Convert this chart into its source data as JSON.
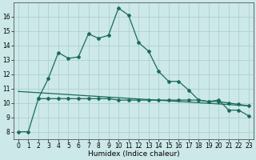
{
  "xlabel": "Humidex (Indice chaleur)",
  "bg_color": "#cce8e8",
  "grid_color": "#aacccc",
  "line_color": "#1a6b5a",
  "line1_x": [
    0,
    1,
    2,
    3,
    4,
    5,
    6,
    7,
    8,
    9,
    10,
    11,
    12,
    13,
    14,
    15,
    16,
    17,
    18,
    19,
    20,
    21,
    22,
    23
  ],
  "line1_y": [
    8.0,
    8.0,
    10.3,
    11.7,
    13.5,
    13.1,
    13.2,
    14.8,
    14.5,
    14.7,
    16.6,
    16.1,
    14.2,
    13.6,
    12.2,
    11.5,
    11.5,
    10.9,
    10.2,
    10.1,
    10.2,
    9.5,
    9.5,
    9.1
  ],
  "line2_x": [
    2,
    3,
    4,
    5,
    6,
    7,
    8,
    9,
    10,
    11,
    12,
    13,
    14,
    15,
    16,
    17,
    18,
    19,
    20,
    21,
    22,
    23
  ],
  "line2_y": [
    10.3,
    10.3,
    10.3,
    10.3,
    10.3,
    10.3,
    10.3,
    10.3,
    10.2,
    10.2,
    10.2,
    10.2,
    10.2,
    10.2,
    10.2,
    10.2,
    10.2,
    10.1,
    10.1,
    10.0,
    9.9,
    9.8
  ],
  "line3_x": [
    0,
    23
  ],
  "line3_y": [
    10.8,
    9.8
  ],
  "xlim": [
    -0.5,
    23.5
  ],
  "ylim": [
    7.5,
    17.0
  ],
  "yticks": [
    8,
    9,
    10,
    11,
    12,
    13,
    14,
    15,
    16
  ],
  "xticks": [
    0,
    1,
    2,
    3,
    4,
    5,
    6,
    7,
    8,
    9,
    10,
    11,
    12,
    13,
    14,
    15,
    16,
    17,
    18,
    19,
    20,
    21,
    22,
    23
  ],
  "marker": "D",
  "marker_size": 2.0,
  "line_width": 0.9,
  "tick_font_size": 5.5,
  "xlabel_font_size": 6.5
}
